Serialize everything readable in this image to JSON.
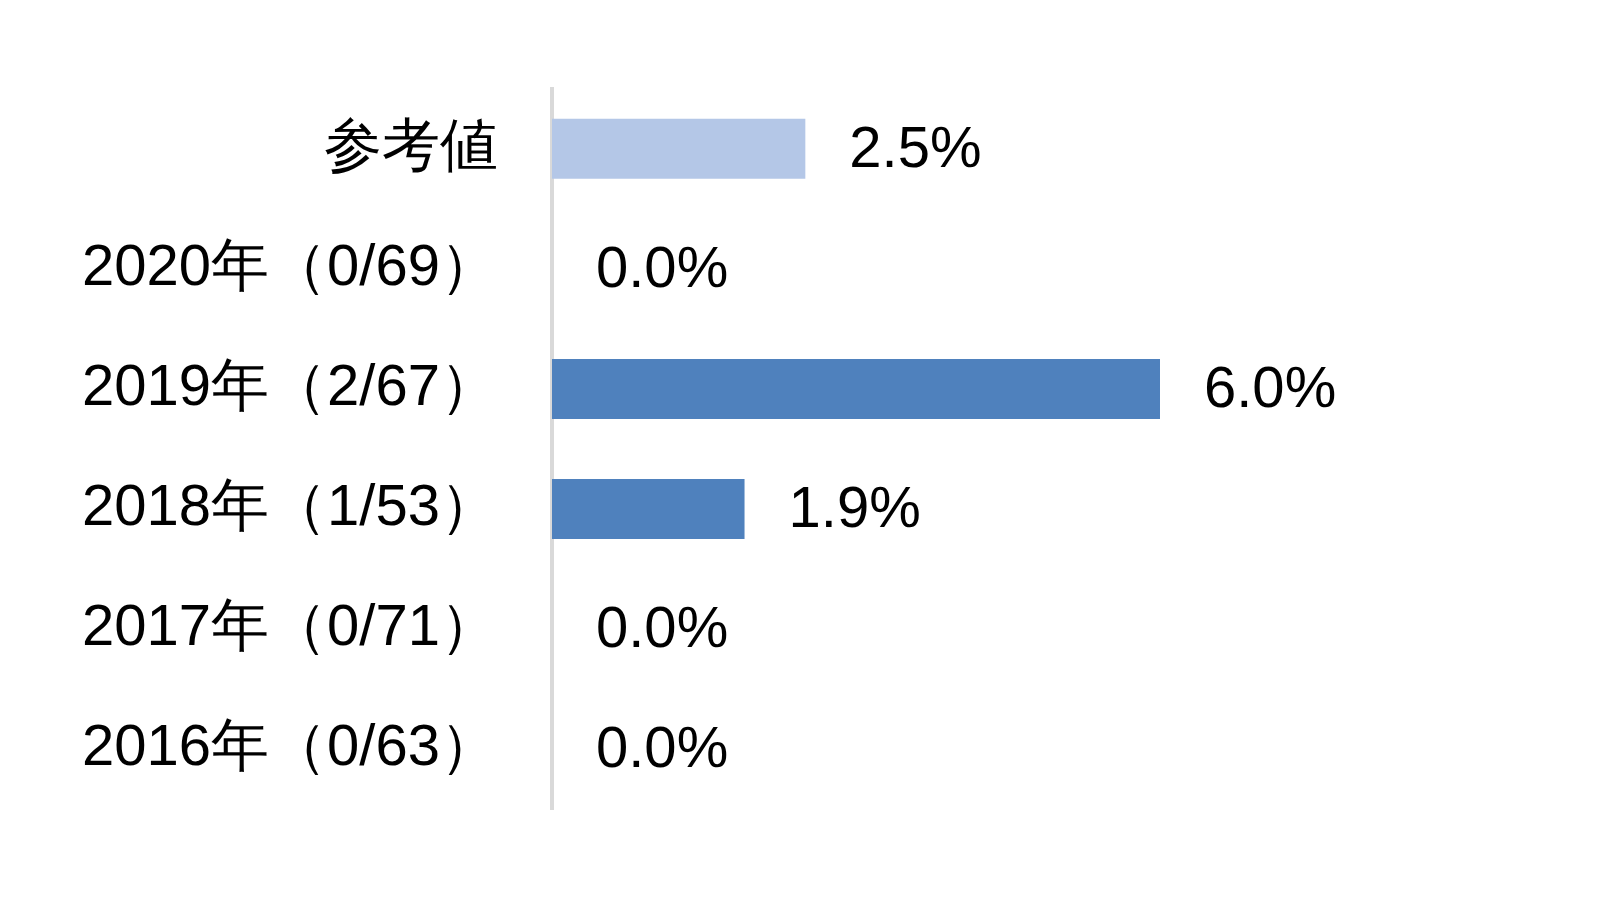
{
  "chart_data": {
    "type": "bar",
    "orientation": "horizontal",
    "categories": [
      "参考値",
      "2020年（0/69）",
      "2019年（2/67）",
      "2018年（1/53）",
      "2017年（0/71）",
      "2016年（0/63）"
    ],
    "values": [
      2.5,
      0,
      6.0,
      1.9,
      0,
      0
    ],
    "colors": [
      "#b4c7e7",
      "#4f81bd",
      "#4f81bd",
      "#4f81bd",
      "#4f81bd",
      "#4f81bd"
    ],
    "value_labels": [
      "2.5%",
      "0.0%",
      "6.0%",
      "1.9%",
      "0.0%",
      "0.0%"
    ],
    "tick_labels": "y"
  }
}
